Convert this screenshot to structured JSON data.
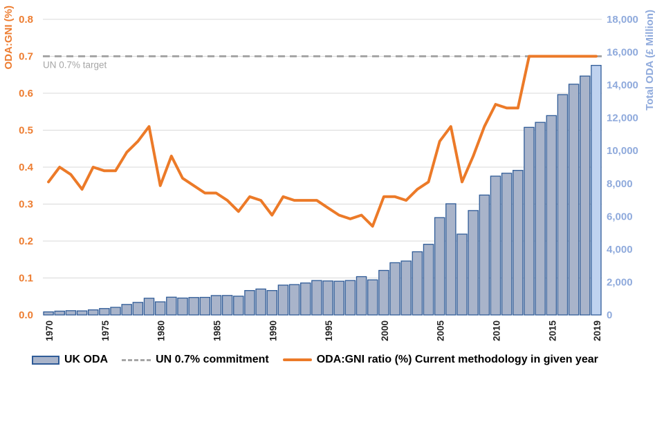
{
  "chart_data": {
    "type": "combo-bar-line",
    "years": [
      1970,
      1971,
      1972,
      1973,
      1974,
      1975,
      1976,
      1977,
      1978,
      1979,
      1980,
      1981,
      1982,
      1983,
      1984,
      1985,
      1986,
      1987,
      1988,
      1989,
      1990,
      1991,
      1992,
      1993,
      1994,
      1995,
      1996,
      1997,
      1998,
      1999,
      2000,
      2001,
      2002,
      2003,
      2004,
      2005,
      2006,
      2007,
      2008,
      2009,
      2010,
      2011,
      2012,
      2013,
      2014,
      2015,
      2016,
      2017,
      2018,
      2019
    ],
    "series": [
      {
        "name": "UK ODA",
        "type": "bar",
        "axis": "right",
        "unit": "£ million",
        "values": [
          186,
          231,
          259,
          246,
          307,
          389,
          462,
          638,
          763,
          1016,
          797,
          1081,
          1028,
          1061,
          1070,
          1180,
          1185,
          1142,
          1485,
          1578,
          1485,
          1815,
          1848,
          1945,
          2093,
          2069,
          2053,
          2096,
          2332,
          2135,
          2711,
          3179,
          3282,
          3847,
          4302,
          5926,
          6770,
          4921,
          6356,
          7300,
          8452,
          8629,
          8802,
          11424,
          11726,
          12138,
          13416,
          14050,
          14546,
          15197
        ]
      },
      {
        "name": "UN 0.7% commitment",
        "type": "dashed-line",
        "axis": "left",
        "constant_value": 0.7
      },
      {
        "name": "ODA:GNI ratio (%) Current methodology in given year",
        "type": "line",
        "axis": "left",
        "values": [
          0.36,
          0.4,
          0.38,
          0.34,
          0.4,
          0.39,
          0.39,
          0.44,
          0.47,
          0.51,
          0.35,
          0.43,
          0.37,
          0.35,
          0.33,
          0.33,
          0.31,
          0.28,
          0.32,
          0.31,
          0.27,
          0.32,
          0.31,
          0.31,
          0.31,
          0.29,
          0.27,
          0.26,
          0.27,
          0.24,
          0.32,
          0.32,
          0.31,
          0.34,
          0.36,
          0.47,
          0.51,
          0.36,
          0.43,
          0.51,
          0.57,
          0.56,
          0.56,
          0.7,
          0.7,
          0.7,
          0.7,
          0.7,
          0.7,
          0.7
        ]
      }
    ],
    "highlight_year": 2019,
    "left_axis": {
      "title": "ODA:GNI (%)",
      "min": 0,
      "max": 0.8,
      "step": 0.1,
      "tick_labels": [
        "0.0",
        "0.1",
        "0.2",
        "0.3",
        "0.4",
        "0.5",
        "0.6",
        "0.7",
        "0.8"
      ]
    },
    "right_axis": {
      "title": "Total ODA (£ Million)",
      "min": 0,
      "max": 18000,
      "step": 2000,
      "tick_labels": [
        "0",
        "2,000",
        "4,000",
        "6,000",
        "8,000",
        "10,000",
        "12,000",
        "14,000",
        "16,000",
        "18,000"
      ]
    },
    "x_axis": {
      "tick_labels": [
        "1970",
        "1975",
        "1980",
        "1985",
        "1990",
        "1995",
        "2000",
        "2005",
        "2010",
        "2015",
        "2019"
      ]
    },
    "annotation": "UN 0.7% target",
    "grid": true,
    "legend_position": "bottom"
  },
  "legend": {
    "items": [
      {
        "swatch": "bar",
        "label": "UK ODA"
      },
      {
        "swatch": "dash",
        "label": "UN 0.7% commitment"
      },
      {
        "swatch": "line",
        "label": "ODA:GNI ratio (%) Current methodology in given year"
      }
    ]
  },
  "colors": {
    "bar_fill": "#A9B4CA",
    "bar_border": "#2F5B97",
    "bar_highlight_fill": "#BFD2EF",
    "ratio_line": "#EC7A28",
    "target_dash": "#A6A6A6",
    "left_axis_text": "#ED7D31",
    "right_axis_text": "#8FAADC",
    "x_axis_text": "#262626",
    "gridline": "#D9D9D9",
    "annotation_text": "#A6A6A6"
  }
}
